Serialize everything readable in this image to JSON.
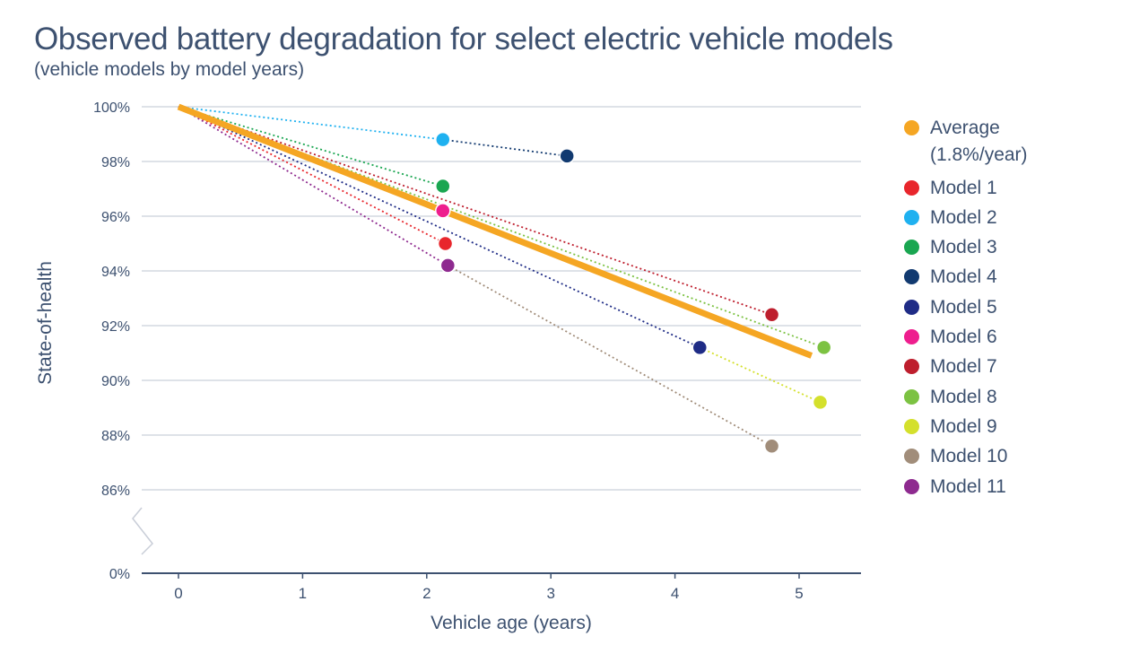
{
  "chart_data": {
    "type": "line",
    "title": "Observed battery degradation for select electric vehicle models",
    "subtitle": "(vehicle models by model years)",
    "xlabel": "Vehicle age (years)",
    "ylabel": "State-of-health",
    "xlim": [
      -0.3,
      5.5
    ],
    "ylim": [
      85,
      100
    ],
    "x_ticks": [
      0,
      1,
      2,
      3,
      4,
      5
    ],
    "x_tick_labels": [
      "0",
      "1",
      "2",
      "3",
      "4",
      "5"
    ],
    "y_ticks": [
      100,
      98,
      96,
      94,
      92,
      90,
      88,
      86
    ],
    "y_tick_labels": [
      "100%",
      "98%",
      "96%",
      "94%",
      "92%",
      "90%",
      "88%",
      "86%"
    ],
    "y_axis_break": true,
    "y_axis_zero_label": "0%",
    "grid": "horizontal",
    "legend_position": "right",
    "average": {
      "name": "Average (1.8%/year)",
      "legend_lines": [
        "Average",
        "(1.8%/year)"
      ],
      "color": "#f5a623",
      "points": [
        [
          0,
          100
        ],
        [
          5.1,
          90.9
        ]
      ]
    },
    "series": [
      {
        "name": "Model 1",
        "color": "#e8262c",
        "points": [
          [
            0,
            100
          ],
          [
            2.15,
            95.0
          ]
        ]
      },
      {
        "name": "Model 2",
        "color": "#1fb1f0",
        "points": [
          [
            0,
            100
          ],
          [
            2.13,
            98.8
          ]
        ]
      },
      {
        "name": "Model 3",
        "color": "#1aa651",
        "points": [
          [
            0,
            100
          ],
          [
            2.13,
            97.1
          ]
        ]
      },
      {
        "name": "Model 4",
        "color": "#123a70",
        "points": [
          [
            2.13,
            98.8
          ],
          [
            3.13,
            98.2
          ]
        ]
      },
      {
        "name": "Model 5",
        "color": "#1f2c86",
        "points": [
          [
            0,
            100
          ],
          [
            4.2,
            91.2
          ]
        ]
      },
      {
        "name": "Model 6",
        "color": "#ee1e8e",
        "points": [
          [
            0,
            100
          ],
          [
            2.13,
            96.2
          ]
        ]
      },
      {
        "name": "Model 7",
        "color": "#be1e2d",
        "points": [
          [
            0,
            100
          ],
          [
            4.78,
            92.4
          ]
        ]
      },
      {
        "name": "Model 8",
        "color": "#7cc242",
        "points": [
          [
            0,
            100
          ],
          [
            5.2,
            91.2
          ]
        ]
      },
      {
        "name": "Model 9",
        "color": "#d4e02c",
        "points": [
          [
            4.2,
            91.2
          ],
          [
            5.17,
            89.2
          ]
        ]
      },
      {
        "name": "Model 10",
        "color": "#a18d7a",
        "points": [
          [
            2.17,
            94.2
          ],
          [
            4.78,
            87.6
          ]
        ]
      },
      {
        "name": "Model 11",
        "color": "#8e2a8f",
        "points": [
          [
            0,
            100
          ],
          [
            2.17,
            94.2
          ]
        ]
      }
    ]
  }
}
